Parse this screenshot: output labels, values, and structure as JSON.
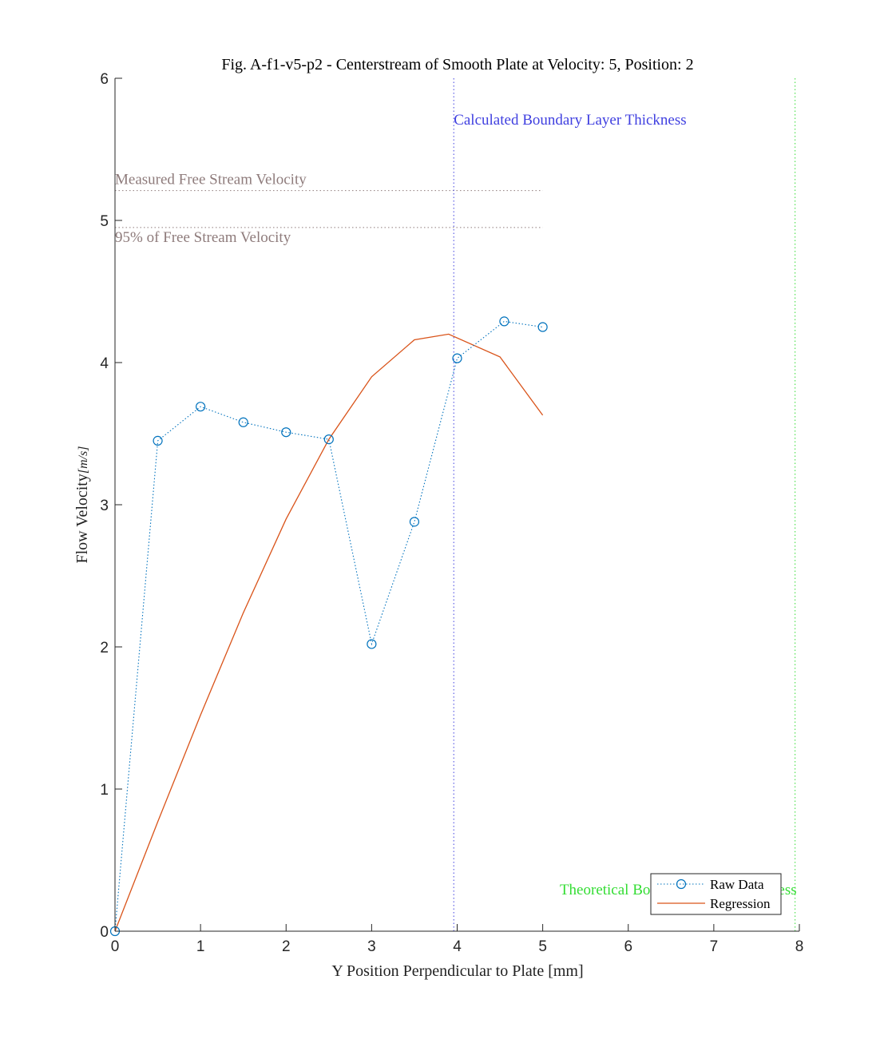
{
  "chart_data": {
    "type": "line",
    "title": "Fig. A-f1-v5-p2 - Centerstream of Smooth Plate at Velocity: 5, Position: 2",
    "xlabel": "Y Position Perpendicular to Plate [mm]",
    "ylabel_main": "Flow Velocity",
    "ylabel_unit": "[m/s]",
    "xlim": [
      0,
      8
    ],
    "ylim": [
      0,
      6
    ],
    "xticks": [
      0,
      1,
      2,
      3,
      4,
      5,
      6,
      7,
      8
    ],
    "yticks": [
      0,
      1,
      2,
      3,
      4,
      5,
      6
    ],
    "grid": false,
    "legend_position": "bottom-right",
    "series": [
      {
        "name": "Raw Data",
        "style": "dotted-with-circle-markers",
        "color": "#0072BD",
        "x": [
          0,
          0.5,
          1,
          1.5,
          2,
          2.5,
          3,
          3.5,
          4,
          4.55,
          5
        ],
        "y": [
          0,
          3.45,
          3.69,
          3.58,
          3.51,
          3.46,
          2.02,
          2.88,
          4.03,
          4.29,
          4.25
        ]
      },
      {
        "name": "Regression",
        "style": "solid",
        "color": "#D95319",
        "x": [
          0,
          0.5,
          1,
          1.5,
          2,
          2.5,
          3,
          3.5,
          3.9,
          4.5,
          5
        ],
        "y": [
          0,
          0.77,
          1.52,
          2.24,
          2.9,
          3.46,
          3.9,
          4.16,
          4.2,
          4.04,
          3.63
        ]
      }
    ],
    "annotations": {
      "measured_free_stream": {
        "label": "Measured Free Stream Velocity",
        "y": 5.21,
        "x_end": 5,
        "color": "#8E7B7B"
      },
      "ninety_five_percent": {
        "label": "95% of Free Stream Velocity",
        "y": 4.95,
        "x_end": 5,
        "color": "#8E7B7B"
      },
      "calculated_boundary": {
        "label": "Calculated Boundary Layer Thickness",
        "x": 3.96,
        "color": "#4040E0"
      },
      "theoretical_boundary": {
        "label": "Theoretical Boundary Layer Thickness",
        "x": 7.95,
        "color": "#33DD33"
      }
    }
  }
}
